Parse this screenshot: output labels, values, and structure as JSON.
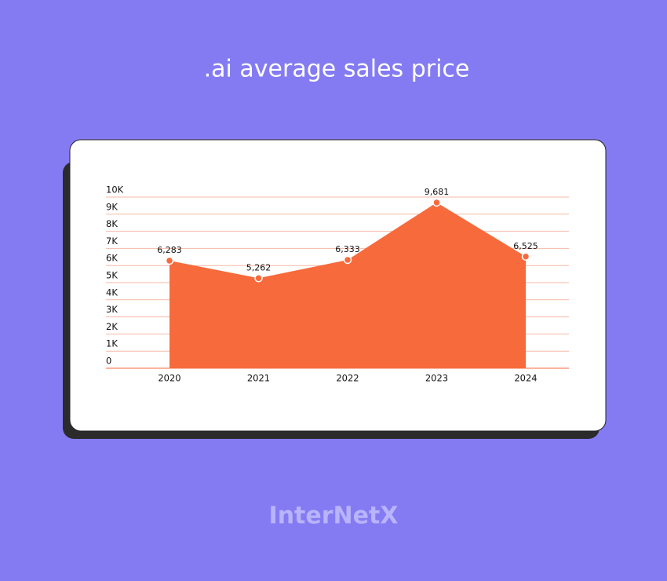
{
  "chart_data": {
    "type": "area",
    "title": ".ai average sales price",
    "categories": [
      "2020",
      "2021",
      "2022",
      "2023",
      "2024"
    ],
    "values": [
      6283,
      5262,
      6333,
      9681,
      6525
    ],
    "value_labels": [
      "6,283",
      "5,262",
      "6,333",
      "9,681",
      "6,525"
    ],
    "color": "#f76a3c",
    "ylim": [
      0,
      10000
    ],
    "yticks": [
      0,
      {
        "value": 1000,
        "label": "1K"
      },
      {
        "value": 2000,
        "label": "2K"
      },
      {
        "value": 3000,
        "label": "3K"
      },
      {
        "value": 4000,
        "label": "4K"
      },
      {
        "value": 5000,
        "label": "5K"
      },
      {
        "value": 6000,
        "label": "6K"
      },
      {
        "value": 7000,
        "label": "7K"
      },
      {
        "value": 8000,
        "label": "8K"
      },
      {
        "value": 9000,
        "label": "9K"
      },
      {
        "value": 10000,
        "label": "10K"
      }
    ],
    "grid": true
  },
  "brand": "InterNetX"
}
